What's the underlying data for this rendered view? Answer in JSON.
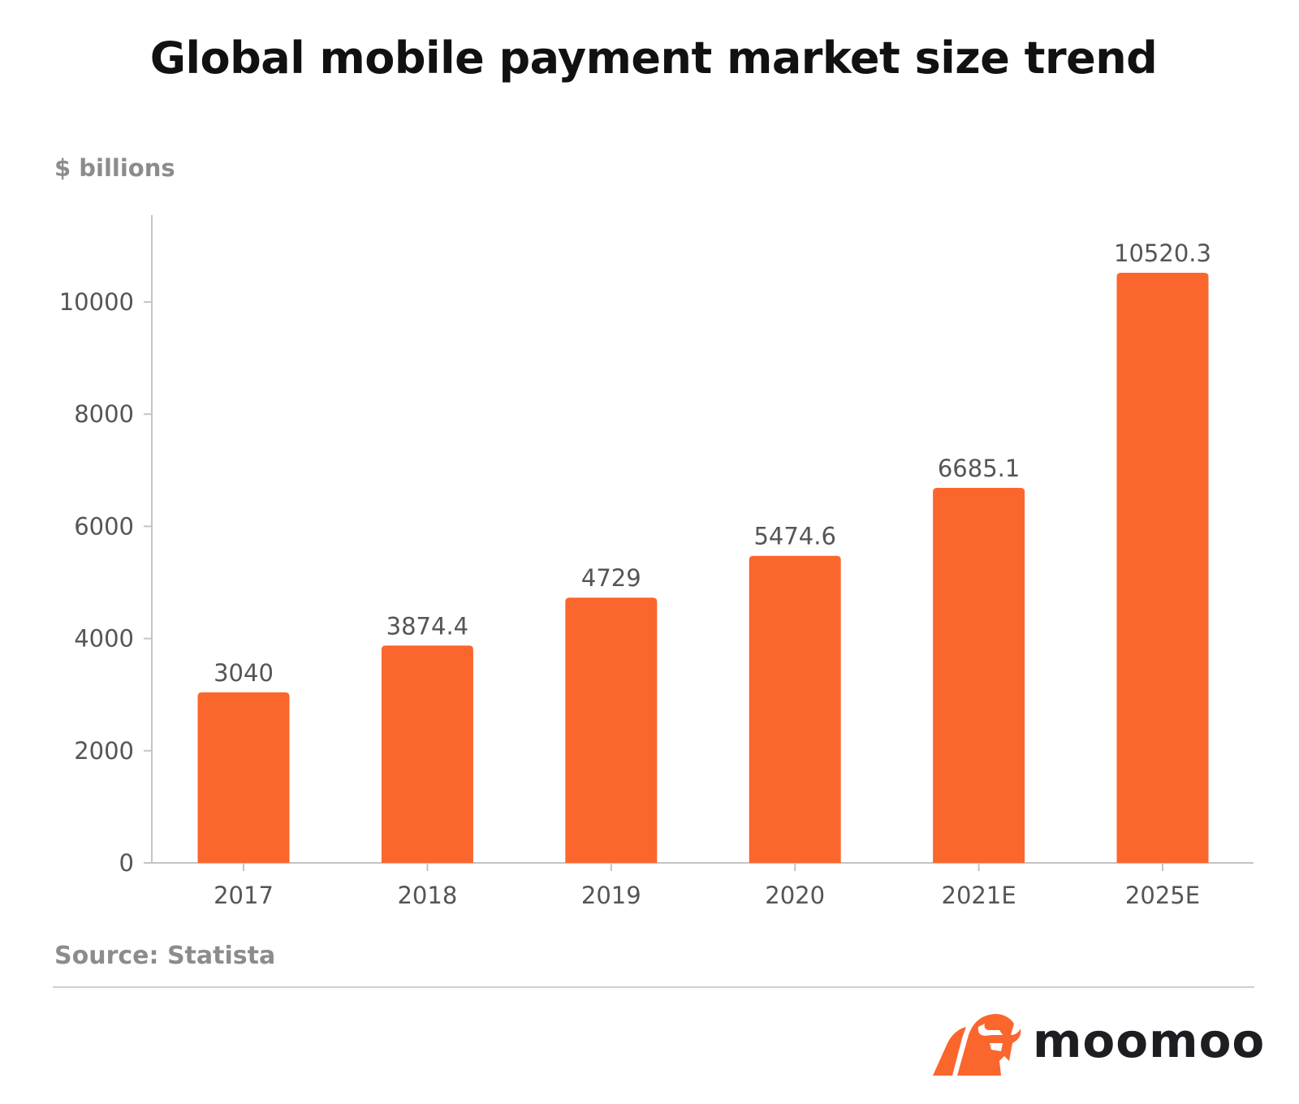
{
  "chart_data": {
    "type": "bar",
    "title": "Global mobile payment market size trend",
    "ylabel": "$  billions",
    "xlabel": "",
    "categories": [
      "2017",
      "2018",
      "2019",
      "2020",
      "2021E",
      "2025E"
    ],
    "values": [
      3040,
      3874.4,
      4729,
      5474.6,
      6685.1,
      10520.3
    ],
    "data_labels": [
      "3040",
      "3874.4",
      "4729",
      "5474.6",
      "6685.1",
      "10520.3"
    ],
    "yticks": [
      0,
      2000,
      4000,
      6000,
      8000,
      10000
    ],
    "ylim": [
      0,
      11400
    ],
    "grid": false,
    "bar_color": "#fb662d",
    "source": "Source: Statista"
  },
  "brand": {
    "name": "moomoo",
    "color": "#fb662d"
  }
}
